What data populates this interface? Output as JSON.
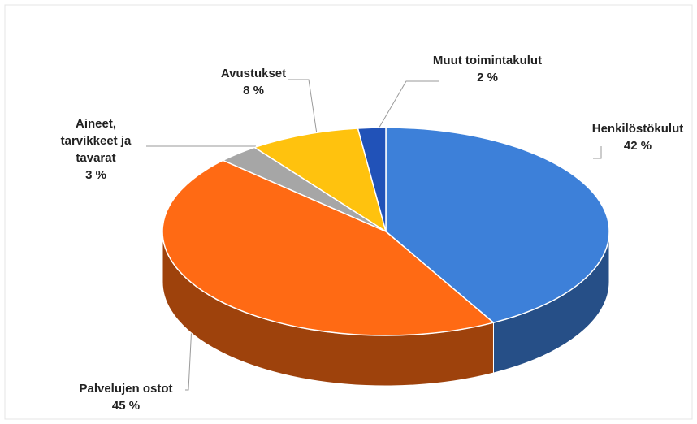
{
  "chart_data": {
    "type": "pie",
    "categories": [
      "Henkilöstökulut",
      "Palvelujen ostot",
      "Aineet, tarvikkeet ja tavarat",
      "Avustukset",
      "Muut toimintakulut"
    ],
    "values": [
      42,
      45,
      3,
      8,
      2
    ],
    "value_labels": [
      "42 %",
      "45 %",
      "3 %",
      "8 %",
      "2 %"
    ],
    "colors": [
      "#3d80d9",
      "#ff6a14",
      "#a6a6a6",
      "#ffc20e",
      "#2152b8"
    ]
  }
}
